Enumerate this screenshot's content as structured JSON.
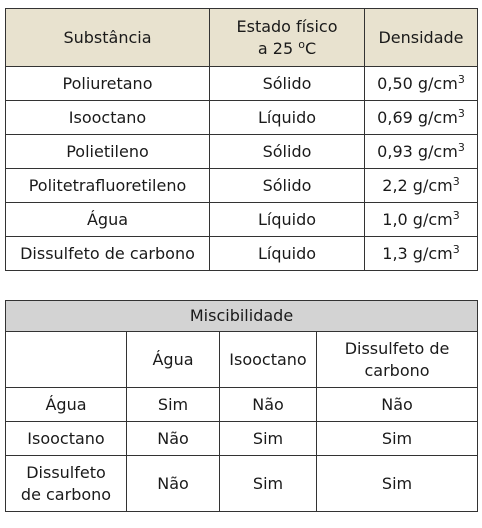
{
  "table1": {
    "headers": {
      "substance": "Substância",
      "state_line1": "Estado físico",
      "state_line2": "a 25",
      "state_deg": "o",
      "state_unit": "C",
      "density": "Densidade"
    },
    "rows": [
      {
        "substance": "Poliuretano",
        "state": "Sólido",
        "density": "0,50 g/cm",
        "exp": "3"
      },
      {
        "substance": "Isooctano",
        "state": "Líquido",
        "density": "0,69 g/cm",
        "exp": "3"
      },
      {
        "substance": "Polietileno",
        "state": "Sólido",
        "density": "0,93 g/cm",
        "exp": "3"
      },
      {
        "substance": "Politetrafluoretileno",
        "state": "Sólido",
        "density": "2,2 g/cm",
        "exp": "3"
      },
      {
        "substance": "Água",
        "state": "Líquido",
        "density": "1,0 g/cm",
        "exp": "3"
      },
      {
        "substance": "Dissulfeto de carbono",
        "state": "Líquido",
        "density": "1,3 g/cm",
        "exp": "3"
      }
    ]
  },
  "table2": {
    "title": "Miscibilidade",
    "columns": [
      "Água",
      "Isooctano",
      "Dissulfeto de",
      "carbono"
    ],
    "rows": [
      {
        "label": "Água",
        "label2": "",
        "values": [
          "Sim",
          "Não",
          "Não"
        ]
      },
      {
        "label": "Isooctano",
        "label2": "",
        "values": [
          "Não",
          "Sim",
          "Sim"
        ]
      },
      {
        "label": "Dissulfeto",
        "label2": "de carbono",
        "values": [
          "Não",
          "Sim",
          "Sim"
        ]
      }
    ]
  }
}
